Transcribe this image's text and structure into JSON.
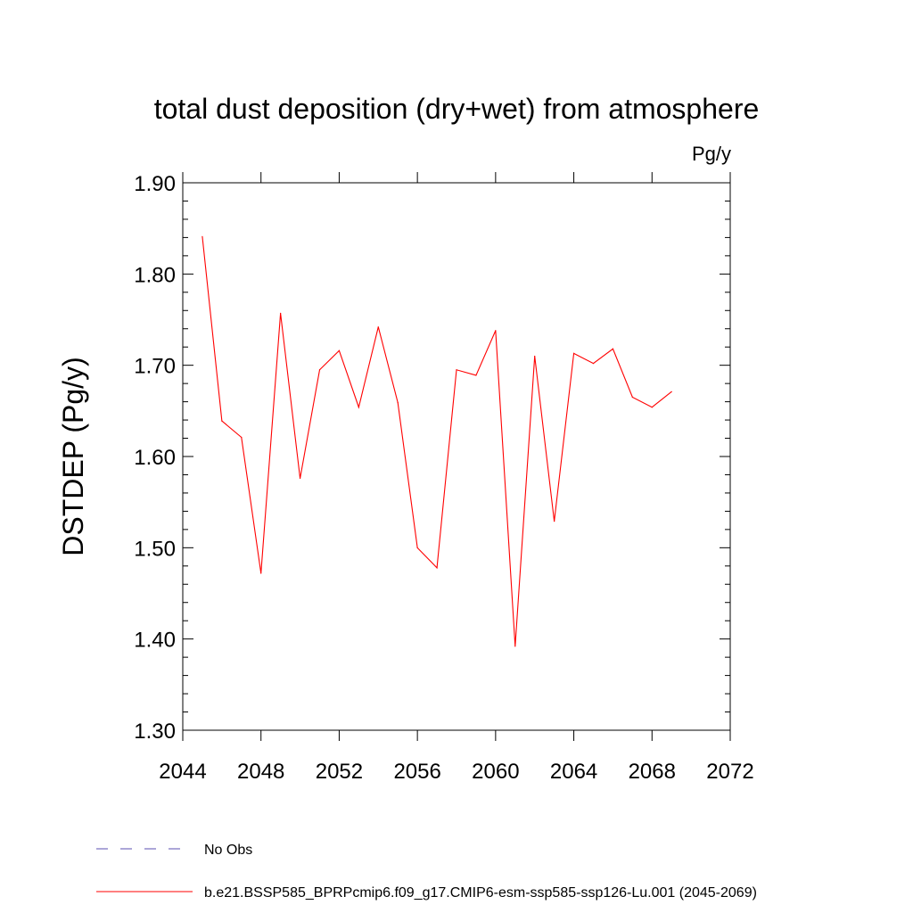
{
  "chart_data": {
    "type": "line",
    "title": "total dust deposition (dry+wet) from atmosphere",
    "units": "Pg/y",
    "ylabel": "DSTDEP  (Pg/y)",
    "xlabel": "",
    "xlim": [
      2044,
      2072
    ],
    "ylim": [
      1.3,
      1.9
    ],
    "x_ticks": [
      2044,
      2048,
      2052,
      2056,
      2060,
      2064,
      2068,
      2072
    ],
    "x_tick_labels": [
      "2044",
      "2048",
      "2052",
      "2056",
      "2060",
      "2064",
      "2068",
      "2072"
    ],
    "y_ticks": [
      1.3,
      1.4,
      1.5,
      1.6,
      1.7,
      1.8,
      1.9
    ],
    "y_tick_labels": [
      "1.30",
      "1.40",
      "1.50",
      "1.60",
      "1.70",
      "1.80",
      "1.90"
    ],
    "grid": false,
    "legend_placement": "bottom",
    "series": [
      {
        "name": "b.e21.BSSP585_BPRPcmip6.f09_g17.CMIP6-esm-ssp585-ssp126-Lu.001 (2045-2069)",
        "color": "#ff0000",
        "style": "solid",
        "x": [
          2045,
          2046,
          2047,
          2048,
          2049,
          2050,
          2051,
          2052,
          2053,
          2054,
          2055,
          2056,
          2057,
          2058,
          2059,
          2060,
          2061,
          2062,
          2063,
          2064,
          2065,
          2066,
          2067,
          2068,
          2069
        ],
        "values": [
          1.841,
          1.639,
          1.621,
          1.472,
          1.757,
          1.576,
          1.695,
          1.716,
          1.654,
          1.742,
          1.659,
          1.5,
          1.478,
          1.695,
          1.689,
          1.738,
          1.392,
          1.71,
          1.529,
          1.713,
          1.702,
          1.718,
          1.665,
          1.654,
          1.671
        ]
      }
    ],
    "legend": [
      {
        "label": "No Obs",
        "color": "#5a4fb0",
        "style": "dashed"
      },
      {
        "label": "b.e21.BSSP585_BPRPcmip6.f09_g17.CMIP6-esm-ssp585-ssp126-Lu.001 (2045-2069)",
        "color": "#ff0000",
        "style": "solid"
      }
    ]
  }
}
